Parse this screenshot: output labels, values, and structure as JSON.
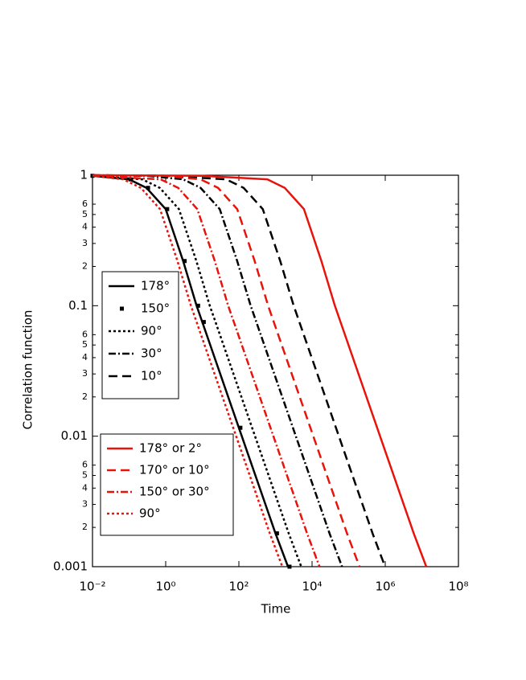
{
  "chart_data": {
    "type": "line",
    "xlabel": "Time",
    "ylabel": "Correlation function",
    "xscale": "log",
    "yscale": "log",
    "xlim": [
      0.01,
      100000000
    ],
    "ylim": [
      0.001,
      1
    ],
    "xticks": [
      {
        "value": 0.01,
        "label": "10⁻²"
      },
      {
        "value": 1,
        "label": "10⁰"
      },
      {
        "value": 100,
        "label": "10²"
      },
      {
        "value": 10000,
        "label": "10⁴"
      },
      {
        "value": 1000000,
        "label": "10⁶"
      },
      {
        "value": 100000000,
        "label": "10⁸"
      }
    ],
    "yticks": [
      1,
      0.1,
      0.01,
      0.001,
      {
        "value": 0.6,
        "label": "6"
      },
      {
        "value": 0.5,
        "label": "5"
      },
      {
        "value": 0.4,
        "label": "4"
      },
      {
        "value": 0.3,
        "label": "3"
      },
      {
        "value": 0.2,
        "label": "2"
      },
      {
        "value": 0.06,
        "label": "6"
      },
      {
        "value": 0.05,
        "label": "5"
      },
      {
        "value": 0.04,
        "label": "4"
      },
      {
        "value": 0.03,
        "label": "3"
      },
      {
        "value": 0.02,
        "label": "2"
      },
      {
        "value": 0.006,
        "label": "6"
      },
      {
        "value": 0.005,
        "label": "5"
      },
      {
        "value": 0.004,
        "label": "4"
      },
      {
        "value": 0.003,
        "label": "3"
      },
      {
        "value": 0.002,
        "label": "2"
      }
    ],
    "series": [
      {
        "name": "178°",
        "color": "#000000",
        "style": "solid",
        "x": [
          0.01,
          0.1,
          0.3,
          1,
          3,
          7,
          10,
          100,
          1000,
          2200
        ],
        "values": [
          0.99,
          0.93,
          0.8,
          0.55,
          0.22,
          0.1,
          0.075,
          0.0116,
          0.0018,
          0.001
        ]
      },
      {
        "name": "150°",
        "color": "#000000",
        "style": "squares",
        "x": [
          0.01,
          0.11,
          0.33,
          1.1,
          3.3,
          7.7,
          11,
          110,
          1100,
          2420
        ],
        "values": [
          0.99,
          0.93,
          0.8,
          0.55,
          0.22,
          0.1,
          0.075,
          0.0116,
          0.0018,
          0.001
        ]
      },
      {
        "name": "90°",
        "color": "#000000",
        "style": "dotted",
        "x": [
          0.01,
          0.23,
          0.69,
          2.3,
          6.9,
          16,
          23,
          230,
          2300,
          5060
        ],
        "values": [
          0.99,
          0.93,
          0.8,
          0.55,
          0.22,
          0.1,
          0.075,
          0.0116,
          0.0018,
          0.001
        ]
      },
      {
        "name": "30°",
        "color": "#000000",
        "style": "dashdot",
        "x": [
          0.01,
          0.3,
          3,
          9,
          30,
          90,
          210,
          300,
          3000,
          30000,
          66000
        ],
        "values": [
          1,
          0.99,
          0.93,
          0.8,
          0.55,
          0.22,
          0.1,
          0.075,
          0.0116,
          0.0018,
          0.001
        ]
      },
      {
        "name": "10°",
        "color": "#000000",
        "style": "dashed",
        "x": [
          0.01,
          1,
          45,
          135,
          450,
          1350,
          3150,
          4500,
          45000,
          450000,
          990000
        ],
        "values": [
          1,
          0.99,
          0.93,
          0.8,
          0.55,
          0.22,
          0.1,
          0.075,
          0.0116,
          0.0018,
          0.001
        ]
      },
      {
        "name": "178° or 2°",
        "color": "#e8140c",
        "style": "solid",
        "x": [
          0.01,
          10,
          600,
          1800,
          6000,
          18000,
          42000,
          60000,
          600000,
          6000000,
          13200000
        ],
        "values": [
          1,
          0.99,
          0.93,
          0.8,
          0.55,
          0.22,
          0.1,
          0.075,
          0.0116,
          0.0018,
          0.001
        ]
      },
      {
        "name": "170° or 10°",
        "color": "#e8140c",
        "style": "dashed",
        "x": [
          0.01,
          0.9,
          9,
          27,
          90,
          270,
          630,
          900,
          9000,
          90000,
          198000
        ],
        "values": [
          1,
          0.99,
          0.93,
          0.8,
          0.55,
          0.22,
          0.1,
          0.075,
          0.0116,
          0.0018,
          0.001
        ]
      },
      {
        "name": "150° or 30°",
        "color": "#e8140c",
        "style": "dashdot",
        "x": [
          0.01,
          0.73,
          2.2,
          7.3,
          22,
          51,
          73,
          730,
          7300,
          16000
        ],
        "values": [
          0.99,
          0.93,
          0.8,
          0.55,
          0.22,
          0.1,
          0.075,
          0.0116,
          0.0018,
          0.001
        ]
      },
      {
        "name": "90°",
        "color": "#e8140c",
        "style": "dotted",
        "x": [
          0.01,
          0.07,
          0.21,
          0.7,
          2.1,
          4.9,
          7,
          70,
          700,
          1540
        ],
        "values": [
          0.99,
          0.93,
          0.8,
          0.55,
          0.22,
          0.1,
          0.075,
          0.0116,
          0.0018,
          0.001
        ]
      }
    ]
  }
}
